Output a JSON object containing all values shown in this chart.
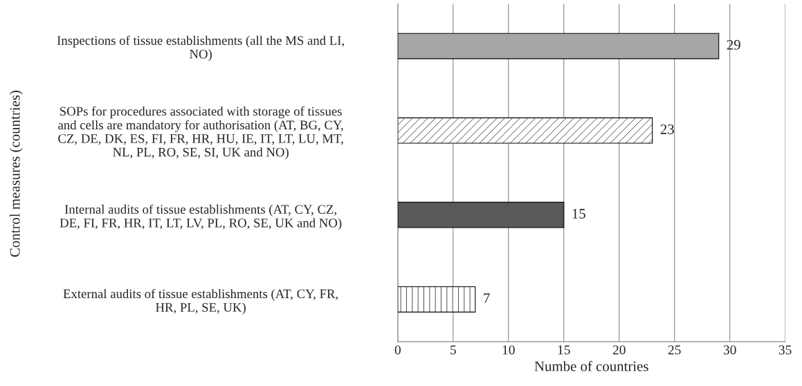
{
  "chart_data": {
    "type": "bar",
    "orientation": "horizontal",
    "categories": [
      "Inspections of tissue establishments (all the MS and LI,\nNO)",
      "SOPs for procedures associated with storage of tissues\nand cells are mandatory for authorisation (AT, BG, CY,\nCZ, DE, DK, ES, FI, FR, HR, HU, IE, IT, LT, LU, MT,\nNL, PL, RO, SE, SI, UK and NO)",
      "Internal audits of tissue establishments (AT, CY, CZ,\nDE, FI, FR, HR, IT, LT, LV, PL, RO, SE, UK and NO)",
      "External audits of tissue establishments (AT, CY, FR,\nHR, PL, SE, UK)"
    ],
    "values": [
      29,
      23,
      15,
      7
    ],
    "colors": [
      "#a6a6a6",
      "#ffffff",
      "#595959",
      "#ffffff"
    ],
    "xlabel": "Numbe of countries",
    "ylabel": "Control measures (countries)",
    "xlim": [
      0,
      35
    ],
    "xticks": [
      0,
      5,
      10,
      15,
      20,
      25,
      30,
      35
    ],
    "grid": "x",
    "data_labels": true
  }
}
